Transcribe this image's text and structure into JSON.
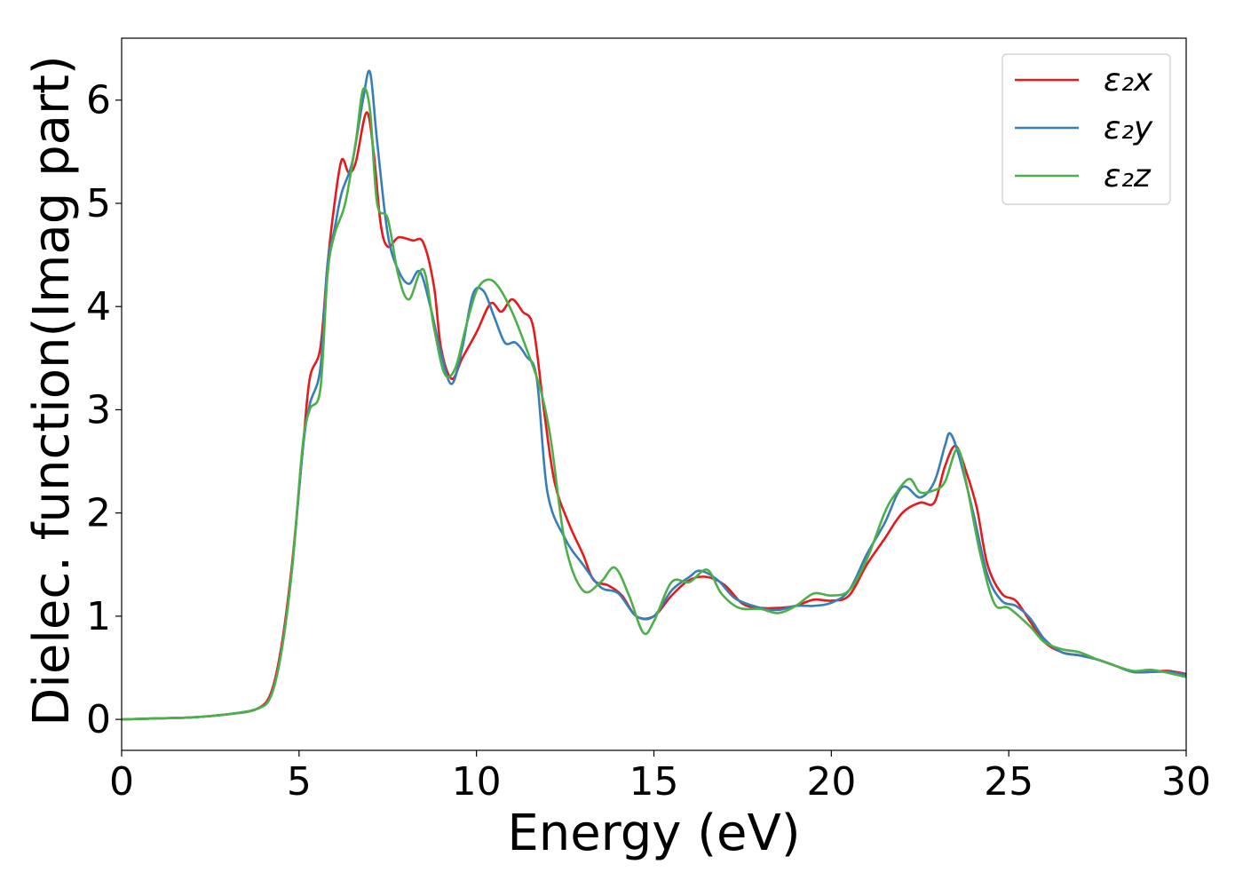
{
  "chart_data": {
    "type": "line",
    "xlabel": "Energy (eV)",
    "ylabel": "Dielec. function(Imag part)",
    "xlim": [
      0,
      30
    ],
    "ylim": [
      -0.3,
      6.6
    ],
    "xticks": [
      0,
      5,
      10,
      15,
      20,
      25,
      30
    ],
    "yticks": [
      0,
      1,
      2,
      3,
      4,
      5,
      6
    ],
    "xtick_labels": [
      "0",
      "5",
      "10",
      "15",
      "20",
      "25",
      "30"
    ],
    "ytick_labels": [
      "0",
      "1",
      "2",
      "3",
      "4",
      "5",
      "6"
    ],
    "grid": false,
    "legend_position": "top-right",
    "series": [
      {
        "name": "ε₂x",
        "color": "#e41a1c",
        "points": [
          [
            0,
            0
          ],
          [
            1,
            0.01
          ],
          [
            2,
            0.02
          ],
          [
            3,
            0.05
          ],
          [
            3.8,
            0.1
          ],
          [
            4.2,
            0.25
          ],
          [
            4.5,
            0.7
          ],
          [
            4.8,
            1.5
          ],
          [
            5.1,
            2.6
          ],
          [
            5.3,
            3.3
          ],
          [
            5.6,
            3.6
          ],
          [
            5.8,
            4.4
          ],
          [
            6.0,
            5.0
          ],
          [
            6.2,
            5.42
          ],
          [
            6.4,
            5.3
          ],
          [
            6.6,
            5.4
          ],
          [
            6.9,
            5.88
          ],
          [
            7.1,
            5.5
          ],
          [
            7.3,
            4.8
          ],
          [
            7.5,
            4.58
          ],
          [
            7.8,
            4.67
          ],
          [
            8.2,
            4.64
          ],
          [
            8.5,
            4.62
          ],
          [
            8.8,
            4.2
          ],
          [
            9.0,
            3.6
          ],
          [
            9.3,
            3.3
          ],
          [
            9.6,
            3.5
          ],
          [
            10.0,
            3.75
          ],
          [
            10.4,
            4.03
          ],
          [
            10.7,
            3.95
          ],
          [
            11.0,
            4.07
          ],
          [
            11.3,
            3.95
          ],
          [
            11.6,
            3.8
          ],
          [
            11.9,
            3.0
          ],
          [
            12.2,
            2.3
          ],
          [
            12.6,
            1.9
          ],
          [
            13.0,
            1.6
          ],
          [
            13.3,
            1.35
          ],
          [
            13.7,
            1.3
          ],
          [
            14.1,
            1.2
          ],
          [
            14.5,
            1.0
          ],
          [
            15.0,
            1.0
          ],
          [
            15.5,
            1.2
          ],
          [
            16.0,
            1.35
          ],
          [
            16.5,
            1.38
          ],
          [
            17.0,
            1.3
          ],
          [
            17.5,
            1.12
          ],
          [
            18.0,
            1.08
          ],
          [
            18.5,
            1.08
          ],
          [
            19.0,
            1.1
          ],
          [
            19.5,
            1.16
          ],
          [
            20.0,
            1.15
          ],
          [
            20.5,
            1.2
          ],
          [
            21.0,
            1.5
          ],
          [
            21.5,
            1.75
          ],
          [
            22.0,
            2.0
          ],
          [
            22.5,
            2.1
          ],
          [
            22.9,
            2.1
          ],
          [
            23.2,
            2.45
          ],
          [
            23.5,
            2.65
          ],
          [
            23.8,
            2.4
          ],
          [
            24.1,
            2.05
          ],
          [
            24.4,
            1.5
          ],
          [
            24.8,
            1.22
          ],
          [
            25.2,
            1.15
          ],
          [
            25.6,
            0.95
          ],
          [
            26.0,
            0.75
          ],
          [
            26.5,
            0.65
          ],
          [
            27.0,
            0.62
          ],
          [
            27.5,
            0.58
          ],
          [
            28.0,
            0.52
          ],
          [
            28.5,
            0.46
          ],
          [
            29.0,
            0.46
          ],
          [
            29.5,
            0.47
          ],
          [
            30,
            0.44
          ]
        ]
      },
      {
        "name": "ε₂y",
        "color": "#377eb8",
        "points": [
          [
            0,
            0
          ],
          [
            1,
            0.01
          ],
          [
            2,
            0.02
          ],
          [
            3,
            0.05
          ],
          [
            3.8,
            0.1
          ],
          [
            4.2,
            0.22
          ],
          [
            4.5,
            0.65
          ],
          [
            4.8,
            1.45
          ],
          [
            5.1,
            2.6
          ],
          [
            5.3,
            3.05
          ],
          [
            5.6,
            3.4
          ],
          [
            5.8,
            4.4
          ],
          [
            6.0,
            4.75
          ],
          [
            6.2,
            5.1
          ],
          [
            6.5,
            5.4
          ],
          [
            6.8,
            6.0
          ],
          [
            7.0,
            6.27
          ],
          [
            7.2,
            5.6
          ],
          [
            7.5,
            4.7
          ],
          [
            7.8,
            4.35
          ],
          [
            8.1,
            4.22
          ],
          [
            8.4,
            4.34
          ],
          [
            8.7,
            4.0
          ],
          [
            9.0,
            3.55
          ],
          [
            9.3,
            3.25
          ],
          [
            9.6,
            3.6
          ],
          [
            9.9,
            4.12
          ],
          [
            10.2,
            4.15
          ],
          [
            10.5,
            3.9
          ],
          [
            10.8,
            3.65
          ],
          [
            11.1,
            3.65
          ],
          [
            11.4,
            3.52
          ],
          [
            11.7,
            3.3
          ],
          [
            12.0,
            2.2
          ],
          [
            12.5,
            1.75
          ],
          [
            13.0,
            1.5
          ],
          [
            13.5,
            1.28
          ],
          [
            14.0,
            1.22
          ],
          [
            14.5,
            1.0
          ],
          [
            15.0,
            1.0
          ],
          [
            15.5,
            1.25
          ],
          [
            16.0,
            1.38
          ],
          [
            16.3,
            1.44
          ],
          [
            16.8,
            1.35
          ],
          [
            17.3,
            1.17
          ],
          [
            18.0,
            1.08
          ],
          [
            18.5,
            1.06
          ],
          [
            19.0,
            1.1
          ],
          [
            19.5,
            1.1
          ],
          [
            20.0,
            1.13
          ],
          [
            20.5,
            1.25
          ],
          [
            21.0,
            1.6
          ],
          [
            21.5,
            1.9
          ],
          [
            22.0,
            2.25
          ],
          [
            22.5,
            2.15
          ],
          [
            22.9,
            2.3
          ],
          [
            23.2,
            2.65
          ],
          [
            23.35,
            2.77
          ],
          [
            23.6,
            2.55
          ],
          [
            24.0,
            2.0
          ],
          [
            24.4,
            1.4
          ],
          [
            24.8,
            1.15
          ],
          [
            25.2,
            1.1
          ],
          [
            25.6,
            0.98
          ],
          [
            26.0,
            0.78
          ],
          [
            26.5,
            0.65
          ],
          [
            27.0,
            0.62
          ],
          [
            27.5,
            0.58
          ],
          [
            28.0,
            0.52
          ],
          [
            28.5,
            0.46
          ],
          [
            29.0,
            0.46
          ],
          [
            29.5,
            0.46
          ],
          [
            30,
            0.43
          ]
        ]
      },
      {
        "name": "ε₂z",
        "color": "#4daf4a",
        "points": [
          [
            0,
            0
          ],
          [
            1,
            0.01
          ],
          [
            2,
            0.02
          ],
          [
            3,
            0.05
          ],
          [
            3.8,
            0.1
          ],
          [
            4.2,
            0.22
          ],
          [
            4.5,
            0.65
          ],
          [
            4.8,
            1.45
          ],
          [
            5.1,
            2.65
          ],
          [
            5.3,
            3.0
          ],
          [
            5.6,
            3.2
          ],
          [
            5.8,
            4.3
          ],
          [
            6.0,
            4.7
          ],
          [
            6.3,
            5.0
          ],
          [
            6.6,
            5.6
          ],
          [
            6.8,
            6.1
          ],
          [
            7.0,
            5.9
          ],
          [
            7.2,
            5.0
          ],
          [
            7.5,
            4.85
          ],
          [
            7.8,
            4.3
          ],
          [
            8.1,
            4.07
          ],
          [
            8.5,
            4.36
          ],
          [
            8.8,
            3.8
          ],
          [
            9.1,
            3.35
          ],
          [
            9.4,
            3.4
          ],
          [
            9.7,
            3.8
          ],
          [
            10.0,
            4.15
          ],
          [
            10.3,
            4.26
          ],
          [
            10.6,
            4.2
          ],
          [
            11.0,
            3.95
          ],
          [
            11.4,
            3.6
          ],
          [
            11.8,
            3.2
          ],
          [
            12.1,
            2.7
          ],
          [
            12.5,
            1.7
          ],
          [
            13.0,
            1.25
          ],
          [
            13.5,
            1.33
          ],
          [
            13.9,
            1.47
          ],
          [
            14.3,
            1.2
          ],
          [
            14.7,
            0.84
          ],
          [
            15.0,
            0.95
          ],
          [
            15.5,
            1.33
          ],
          [
            16.0,
            1.33
          ],
          [
            16.5,
            1.45
          ],
          [
            16.9,
            1.22
          ],
          [
            17.4,
            1.08
          ],
          [
            18.0,
            1.07
          ],
          [
            18.5,
            1.03
          ],
          [
            19.0,
            1.1
          ],
          [
            19.5,
            1.22
          ],
          [
            20.0,
            1.2
          ],
          [
            20.5,
            1.25
          ],
          [
            21.0,
            1.55
          ],
          [
            21.5,
            2.0
          ],
          [
            21.8,
            2.18
          ],
          [
            22.2,
            2.33
          ],
          [
            22.5,
            2.2
          ],
          [
            22.9,
            2.22
          ],
          [
            23.2,
            2.3
          ],
          [
            23.55,
            2.62
          ],
          [
            23.8,
            2.3
          ],
          [
            24.2,
            1.6
          ],
          [
            24.6,
            1.12
          ],
          [
            25.0,
            1.08
          ],
          [
            25.6,
            0.9
          ],
          [
            26.0,
            0.75
          ],
          [
            26.5,
            0.68
          ],
          [
            27.0,
            0.65
          ],
          [
            27.5,
            0.58
          ],
          [
            28.0,
            0.52
          ],
          [
            28.5,
            0.47
          ],
          [
            29.0,
            0.48
          ],
          [
            29.5,
            0.45
          ],
          [
            30,
            0.41
          ]
        ]
      }
    ]
  }
}
